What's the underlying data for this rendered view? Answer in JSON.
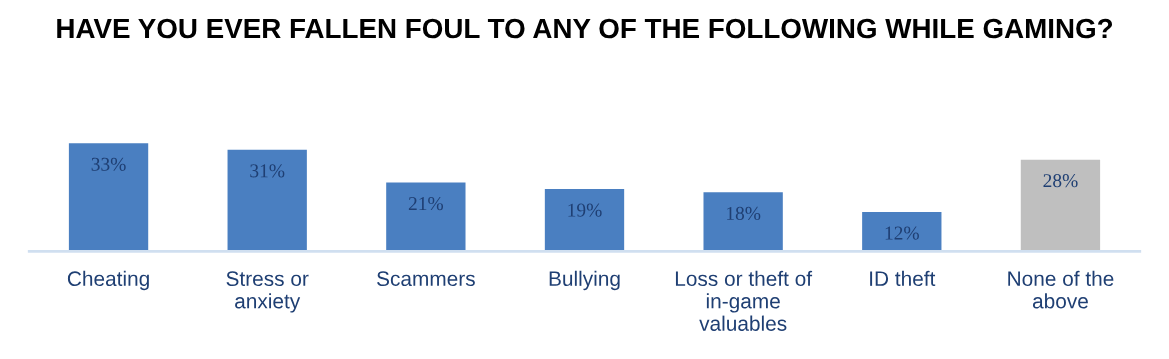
{
  "chart_data": {
    "type": "bar",
    "title": "HAVE YOU EVER FALLEN FOUL TO ANY OF THE FOLLOWING WHILE GAMING?",
    "categories": [
      "Cheating",
      "Stress or anxiety",
      "Scammers",
      "Bullying",
      "Loss or theft of in-game valuables",
      "ID theft",
      "None of the above"
    ],
    "values": [
      33,
      31,
      21,
      19,
      18,
      12,
      28
    ],
    "colors": [
      "#4a7fc1",
      "#4a7fc1",
      "#4a7fc1",
      "#4a7fc1",
      "#4a7fc1",
      "#4a7fc1",
      "#bfbfbf"
    ],
    "value_labels": [
      "33%",
      "31%",
      "21%",
      "19%",
      "18%",
      "12%",
      "28%"
    ],
    "grid": false,
    "legend": false
  }
}
